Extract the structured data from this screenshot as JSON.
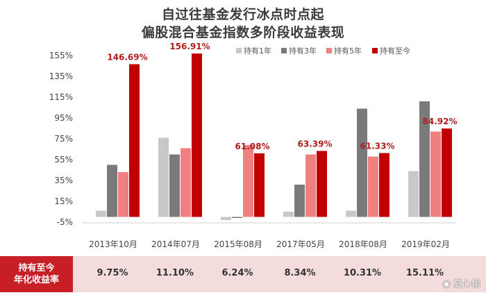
{
  "chart_data": {
    "type": "bar",
    "title": "自过往基金发行冰点时点起",
    "subtitle": "偏股混合基金指数多阶段收益表现",
    "categories": [
      "2013年10月",
      "2014年07月",
      "2015年08月",
      "2017年05月",
      "2018年08月",
      "2019年02月"
    ],
    "series": [
      {
        "name": "持有1年",
        "color": "#c8c8c8",
        "values": [
          6,
          76,
          -3,
          5,
          6,
          44
        ]
      },
      {
        "name": "持有3年",
        "color": "#7a7a7a",
        "values": [
          50,
          60,
          -1,
          31,
          104,
          111
        ]
      },
      {
        "name": "持有5年",
        "color": "#f08080",
        "values": [
          43,
          66,
          69,
          60,
          58,
          82
        ]
      },
      {
        "name": "持有至今",
        "color": "#c00000",
        "values": [
          146.69,
          156.91,
          61.08,
          63.39,
          61.33,
          84.92
        ]
      }
    ],
    "data_labels": [
      "146.69%",
      "156.91%",
      "61.08%",
      "63.39%",
      "61.33%",
      "84.92%"
    ],
    "yticks": [
      "155%",
      "135%",
      "115%",
      "95%",
      "75%",
      "55%",
      "35%",
      "15%",
      "-5%"
    ],
    "ylim": [
      -5,
      155
    ],
    "legend_position": "top-right",
    "grid": false
  },
  "annual_row": {
    "label_line1": "持有至今",
    "label_line2": "年化收益率",
    "values": [
      "9.75%",
      "11.10%",
      "6.24%",
      "8.34%",
      "10.31%",
      "15.11%"
    ]
  },
  "watermark": "夏心愉"
}
